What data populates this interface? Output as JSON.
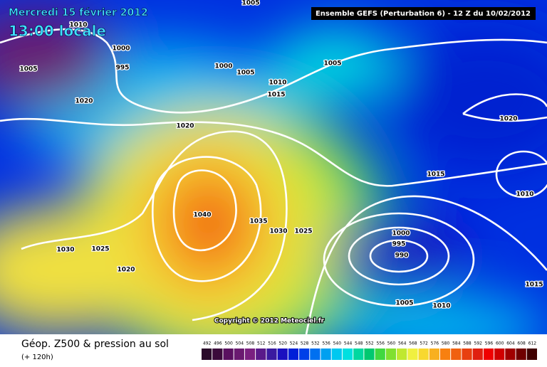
{
  "header": {
    "date": "Mercredi 15 février 2012",
    "time": "13:00 locale",
    "run": "Ensemble GEFS (Perturbation 6)  -  12 Z du 10/02/2012"
  },
  "isobar_labels": [
    "1005",
    "1010",
    "1000",
    "995",
    "1005",
    "1020",
    "1000",
    "1005",
    "1010",
    "1015",
    "1005",
    "1020",
    "1020",
    "1015",
    "1010",
    "1040",
    "1035",
    "1030",
    "1025",
    "1030",
    "1025",
    "1020",
    "1000",
    "995",
    "990",
    "1005",
    "1010",
    "1015"
  ],
  "copyright": "Copyright © 2012 Meteociel.fr",
  "footer": {
    "caption": "Géop. Z500 & pression au sol",
    "lead": "(+ 120h)"
  },
  "scale": {
    "labels": [
      "492",
      "496",
      "500",
      "504",
      "508",
      "512",
      "516",
      "520",
      "524",
      "528",
      "532",
      "536",
      "540",
      "544",
      "548",
      "552",
      "556",
      "560",
      "564",
      "568",
      "572",
      "576",
      "580",
      "584",
      "588",
      "592",
      "596",
      "600",
      "604",
      "608",
      "612"
    ],
    "colors": [
      "#2a0a2a",
      "#3b0a3b",
      "#5a1060",
      "#6a1a70",
      "#7a2080",
      "#5a1a8a",
      "#3a1aa0",
      "#1a10c0",
      "#0020d8",
      "#0040e8",
      "#0070f0",
      "#00a0f0",
      "#00c8f0",
      "#00e0e0",
      "#00d8a0",
      "#00c870",
      "#40d840",
      "#80e030",
      "#c0e830",
      "#f0f040",
      "#f8d830",
      "#f8b020",
      "#f88010",
      "#f06010",
      "#e84010",
      "#e02010",
      "#f00000",
      "#d00000",
      "#a00000",
      "#700000",
      "#400000"
    ]
  }
}
